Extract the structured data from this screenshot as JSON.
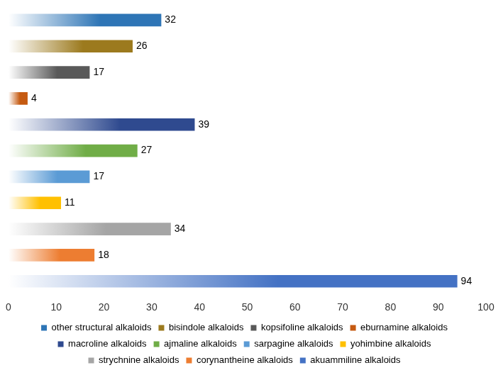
{
  "chart_data": {
    "type": "bar",
    "orientation": "horizontal",
    "categories": [
      "other structural alkaloids",
      "bisindole alkaloids",
      "kopsifoline alkaloids",
      "eburnamine alkaloids",
      "macroline alkaloids",
      "ajmaline alkaloids",
      "sarpagine alkaloids",
      "yohimbine alkaloids",
      "strychnine alkaloids",
      "corynantheine alkaloids",
      "akuammiline alkaloids"
    ],
    "values": [
      32,
      26,
      17,
      4,
      39,
      27,
      17,
      11,
      34,
      18,
      94
    ],
    "colors": [
      "#2e75b6",
      "#9c7a1e",
      "#595959",
      "#c55a11",
      "#2f4a8f",
      "#70ad47",
      "#5b9bd5",
      "#ffc000",
      "#a5a5a5",
      "#ed7d31",
      "#4472c4"
    ],
    "xlim": [
      0,
      100
    ],
    "xticks": [
      0,
      10,
      20,
      30,
      40,
      50,
      60,
      70,
      80,
      90,
      100
    ],
    "grid": false,
    "legend": "bottom",
    "data_labels": true,
    "tick_labels": "x"
  }
}
